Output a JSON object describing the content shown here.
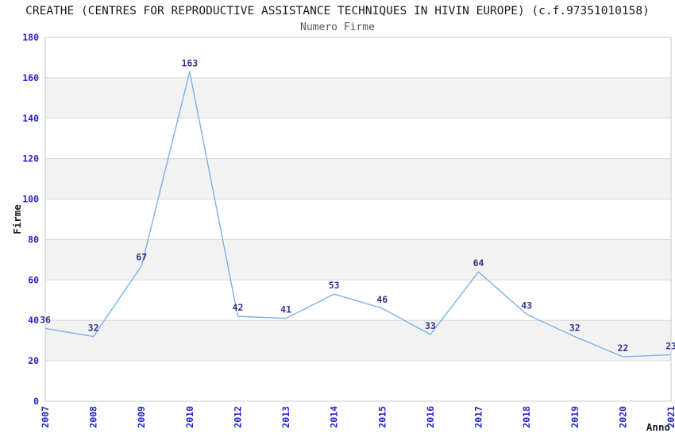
{
  "title": "CREATHE (CENTRES FOR REPRODUCTIVE ASSISTANCE TECHNIQUES IN HIVIN EUROPE) (c.f.97351010158)",
  "chart_data": {
    "type": "line",
    "title": "Numero Firme",
    "xlabel": "Anno",
    "ylabel": "Firme",
    "categories": [
      "2007",
      "2008",
      "2009",
      "2010",
      "2012",
      "2013",
      "2014",
      "2015",
      "2016",
      "2017",
      "2018",
      "2019",
      "2020",
      "2021"
    ],
    "values": [
      36,
      32,
      67,
      163,
      42,
      41,
      53,
      46,
      33,
      64,
      43,
      32,
      22,
      23
    ],
    "ylim": [
      0,
      180
    ],
    "ytick_step": 20,
    "yticks": [
      0,
      20,
      40,
      60,
      80,
      100,
      120,
      140,
      160,
      180
    ],
    "grid": true,
    "legend": "none",
    "colors": {
      "line": "#7db1e8",
      "tick_label": "#2323cc",
      "data_label": "#333388",
      "band": "#f2f2f2",
      "band_alt": "#ffffff",
      "gridline": "#d9d9d9",
      "border": "#c9c9c9",
      "title": "#1a1a1a",
      "subtitle": "#595959"
    }
  }
}
